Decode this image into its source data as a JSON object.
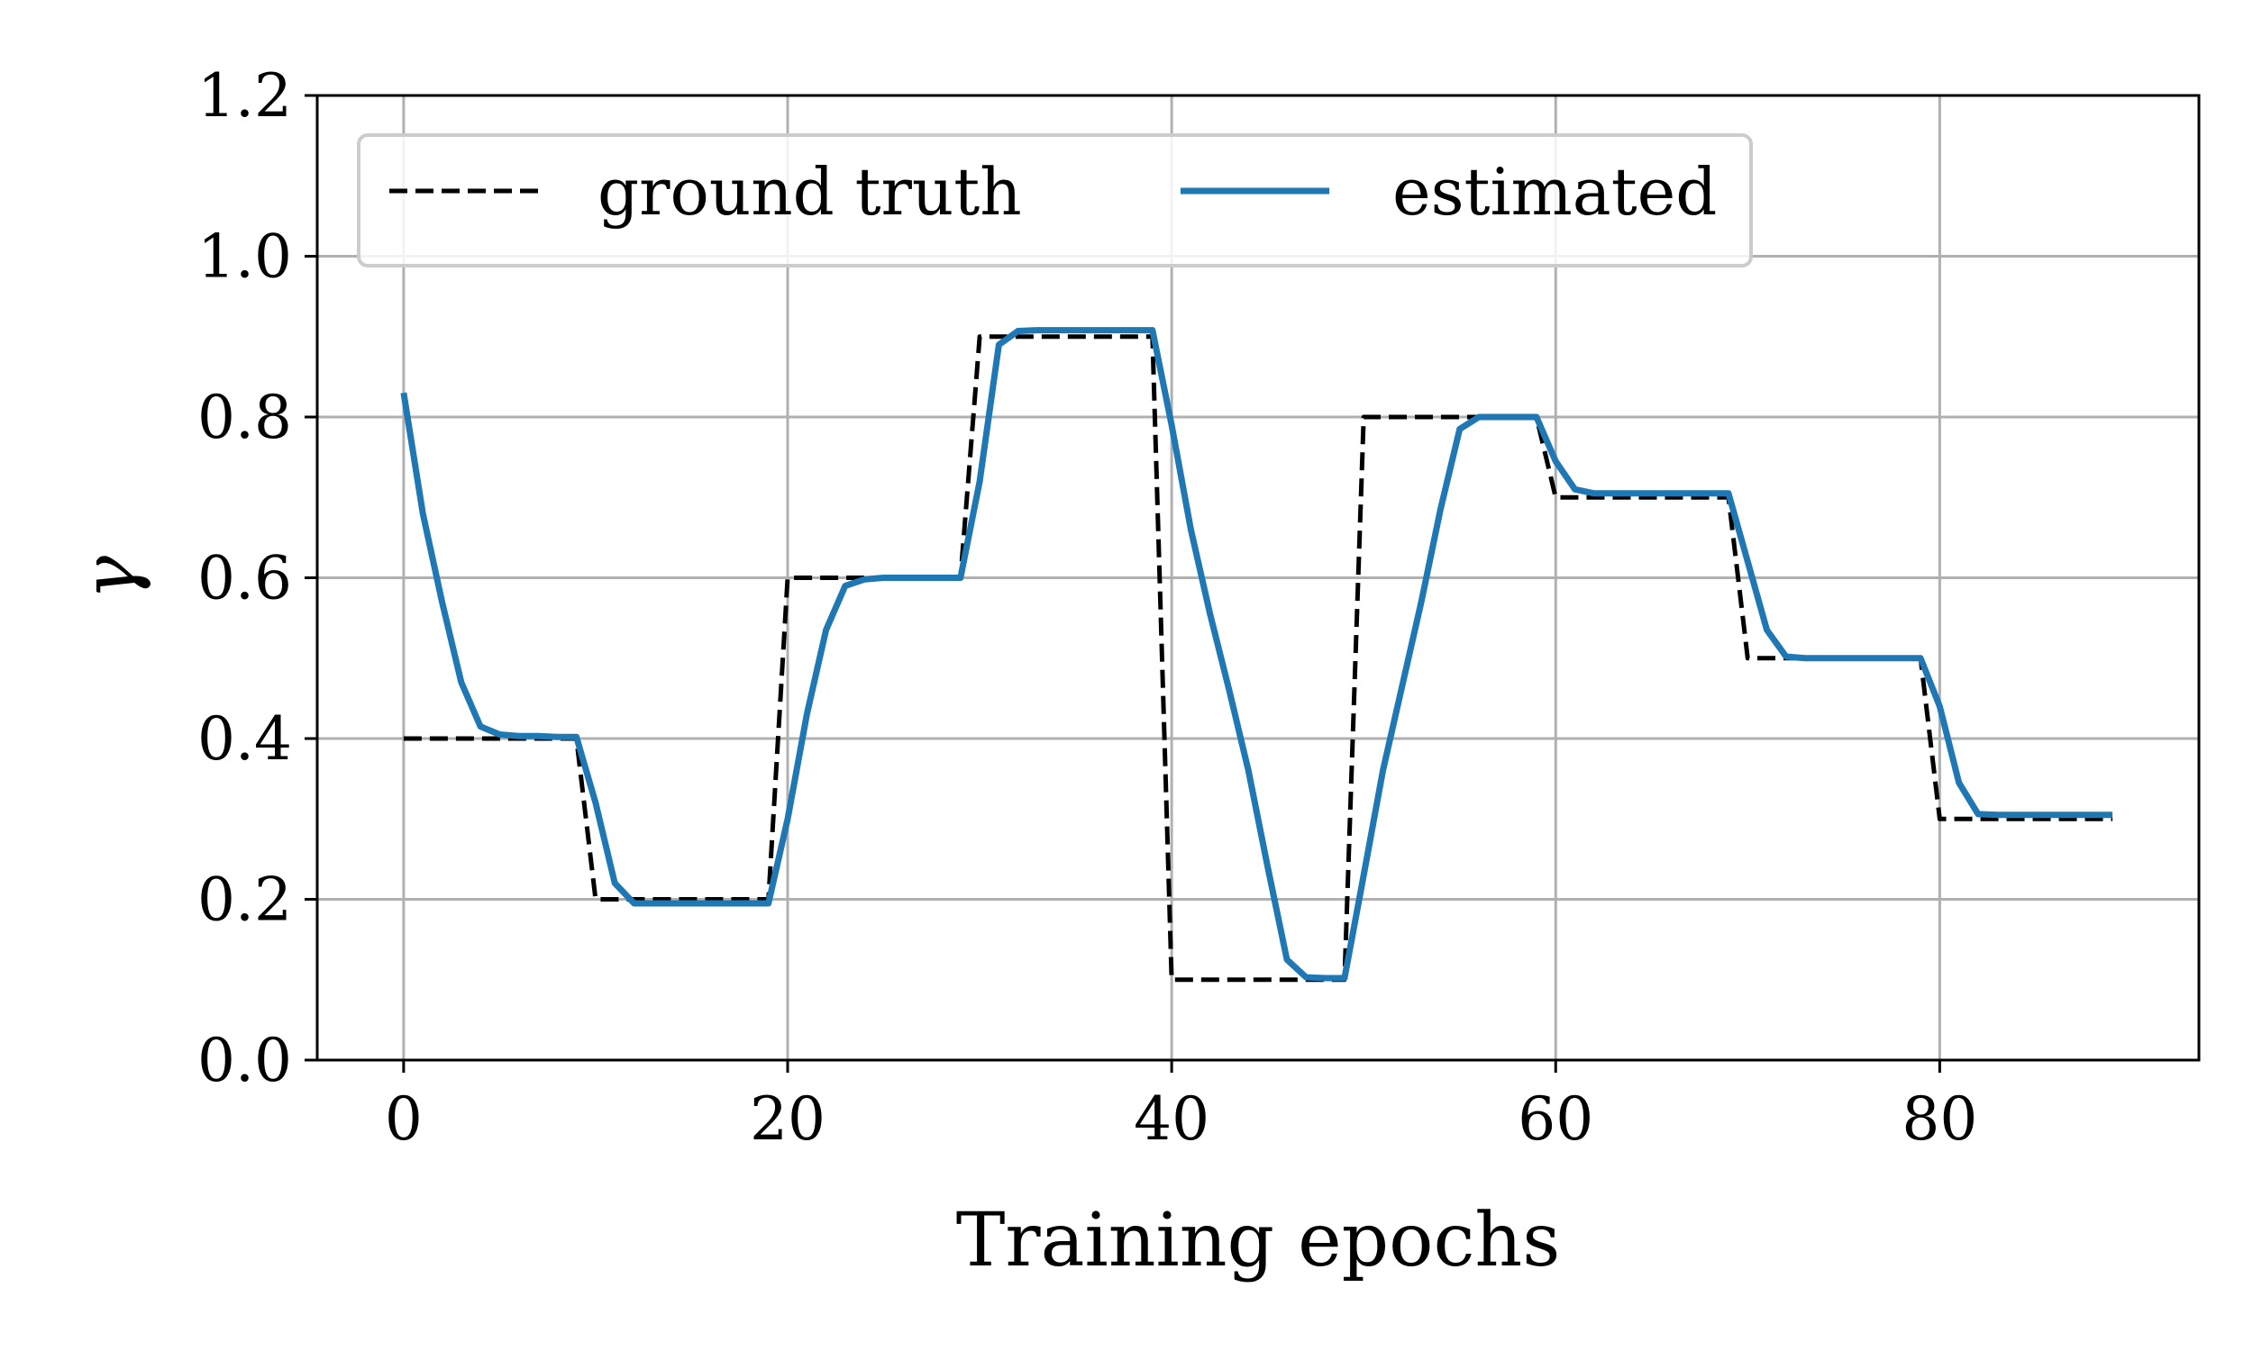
{
  "chart_data": {
    "type": "line",
    "xlabel": "Training epochs",
    "ylabel": "γ",
    "xlim": [
      -4.5,
      93.5
    ],
    "ylim": [
      0.0,
      1.2
    ],
    "xticks": [
      "0",
      "20",
      "40",
      "60",
      "80"
    ],
    "xtick_values": [
      0,
      20,
      40,
      60,
      80
    ],
    "yticks": [
      "0.0",
      "0.2",
      "0.4",
      "0.6",
      "0.8",
      "1.0",
      "1.2"
    ],
    "ytick_values": [
      0.0,
      0.2,
      0.4,
      0.6,
      0.8,
      1.0,
      1.2
    ],
    "grid": true,
    "legend": {
      "placement": "top-left",
      "ncols": 2
    },
    "series": [
      {
        "name": "ground truth",
        "style": "dashed",
        "color": "#000000",
        "x": [
          0,
          9,
          10,
          19,
          20,
          29,
          30,
          39,
          40,
          49,
          50,
          59,
          60,
          69,
          70,
          79,
          80,
          89
        ],
        "y": [
          0.4,
          0.4,
          0.2,
          0.2,
          0.6,
          0.6,
          0.9,
          0.9,
          0.1,
          0.1,
          0.8,
          0.8,
          0.7,
          0.7,
          0.5,
          0.5,
          0.3,
          0.3
        ]
      },
      {
        "name": "estimated",
        "style": "solid",
        "color": "#1f77b4",
        "x": [
          0,
          1,
          2,
          3,
          4,
          5,
          6,
          7,
          8,
          9,
          10,
          11,
          12,
          13,
          14,
          15,
          16,
          17,
          18,
          19,
          20,
          21,
          22,
          23,
          24,
          25,
          26,
          27,
          28,
          29,
          30,
          31,
          32,
          33,
          34,
          35,
          36,
          37,
          38,
          39,
          40,
          41,
          42,
          43,
          44,
          45,
          46,
          47,
          48,
          49,
          50,
          51,
          52,
          53,
          54,
          55,
          56,
          57,
          58,
          59,
          60,
          61,
          62,
          63,
          64,
          65,
          66,
          67,
          68,
          69,
          70,
          71,
          72,
          73,
          74,
          75,
          76,
          77,
          78,
          79,
          80,
          81,
          82,
          83,
          84,
          85,
          86,
          87,
          88,
          89
        ],
        "y": [
          0.83,
          0.68,
          0.57,
          0.47,
          0.415,
          0.405,
          0.403,
          0.403,
          0.402,
          0.402,
          0.32,
          0.22,
          0.195,
          0.195,
          0.195,
          0.195,
          0.195,
          0.195,
          0.195,
          0.195,
          0.3,
          0.43,
          0.535,
          0.59,
          0.598,
          0.6,
          0.6,
          0.6,
          0.6,
          0.6,
          0.72,
          0.89,
          0.907,
          0.908,
          0.908,
          0.908,
          0.908,
          0.908,
          0.908,
          0.908,
          0.79,
          0.66,
          0.555,
          0.46,
          0.36,
          0.24,
          0.125,
          0.103,
          0.102,
          0.102,
          0.23,
          0.36,
          0.465,
          0.57,
          0.685,
          0.785,
          0.8,
          0.8,
          0.8,
          0.8,
          0.745,
          0.71,
          0.705,
          0.705,
          0.705,
          0.705,
          0.705,
          0.705,
          0.705,
          0.705,
          0.62,
          0.535,
          0.502,
          0.5,
          0.5,
          0.5,
          0.5,
          0.5,
          0.5,
          0.5,
          0.44,
          0.345,
          0.306,
          0.305,
          0.305,
          0.305,
          0.305,
          0.305,
          0.305,
          0.305
        ]
      }
    ]
  }
}
